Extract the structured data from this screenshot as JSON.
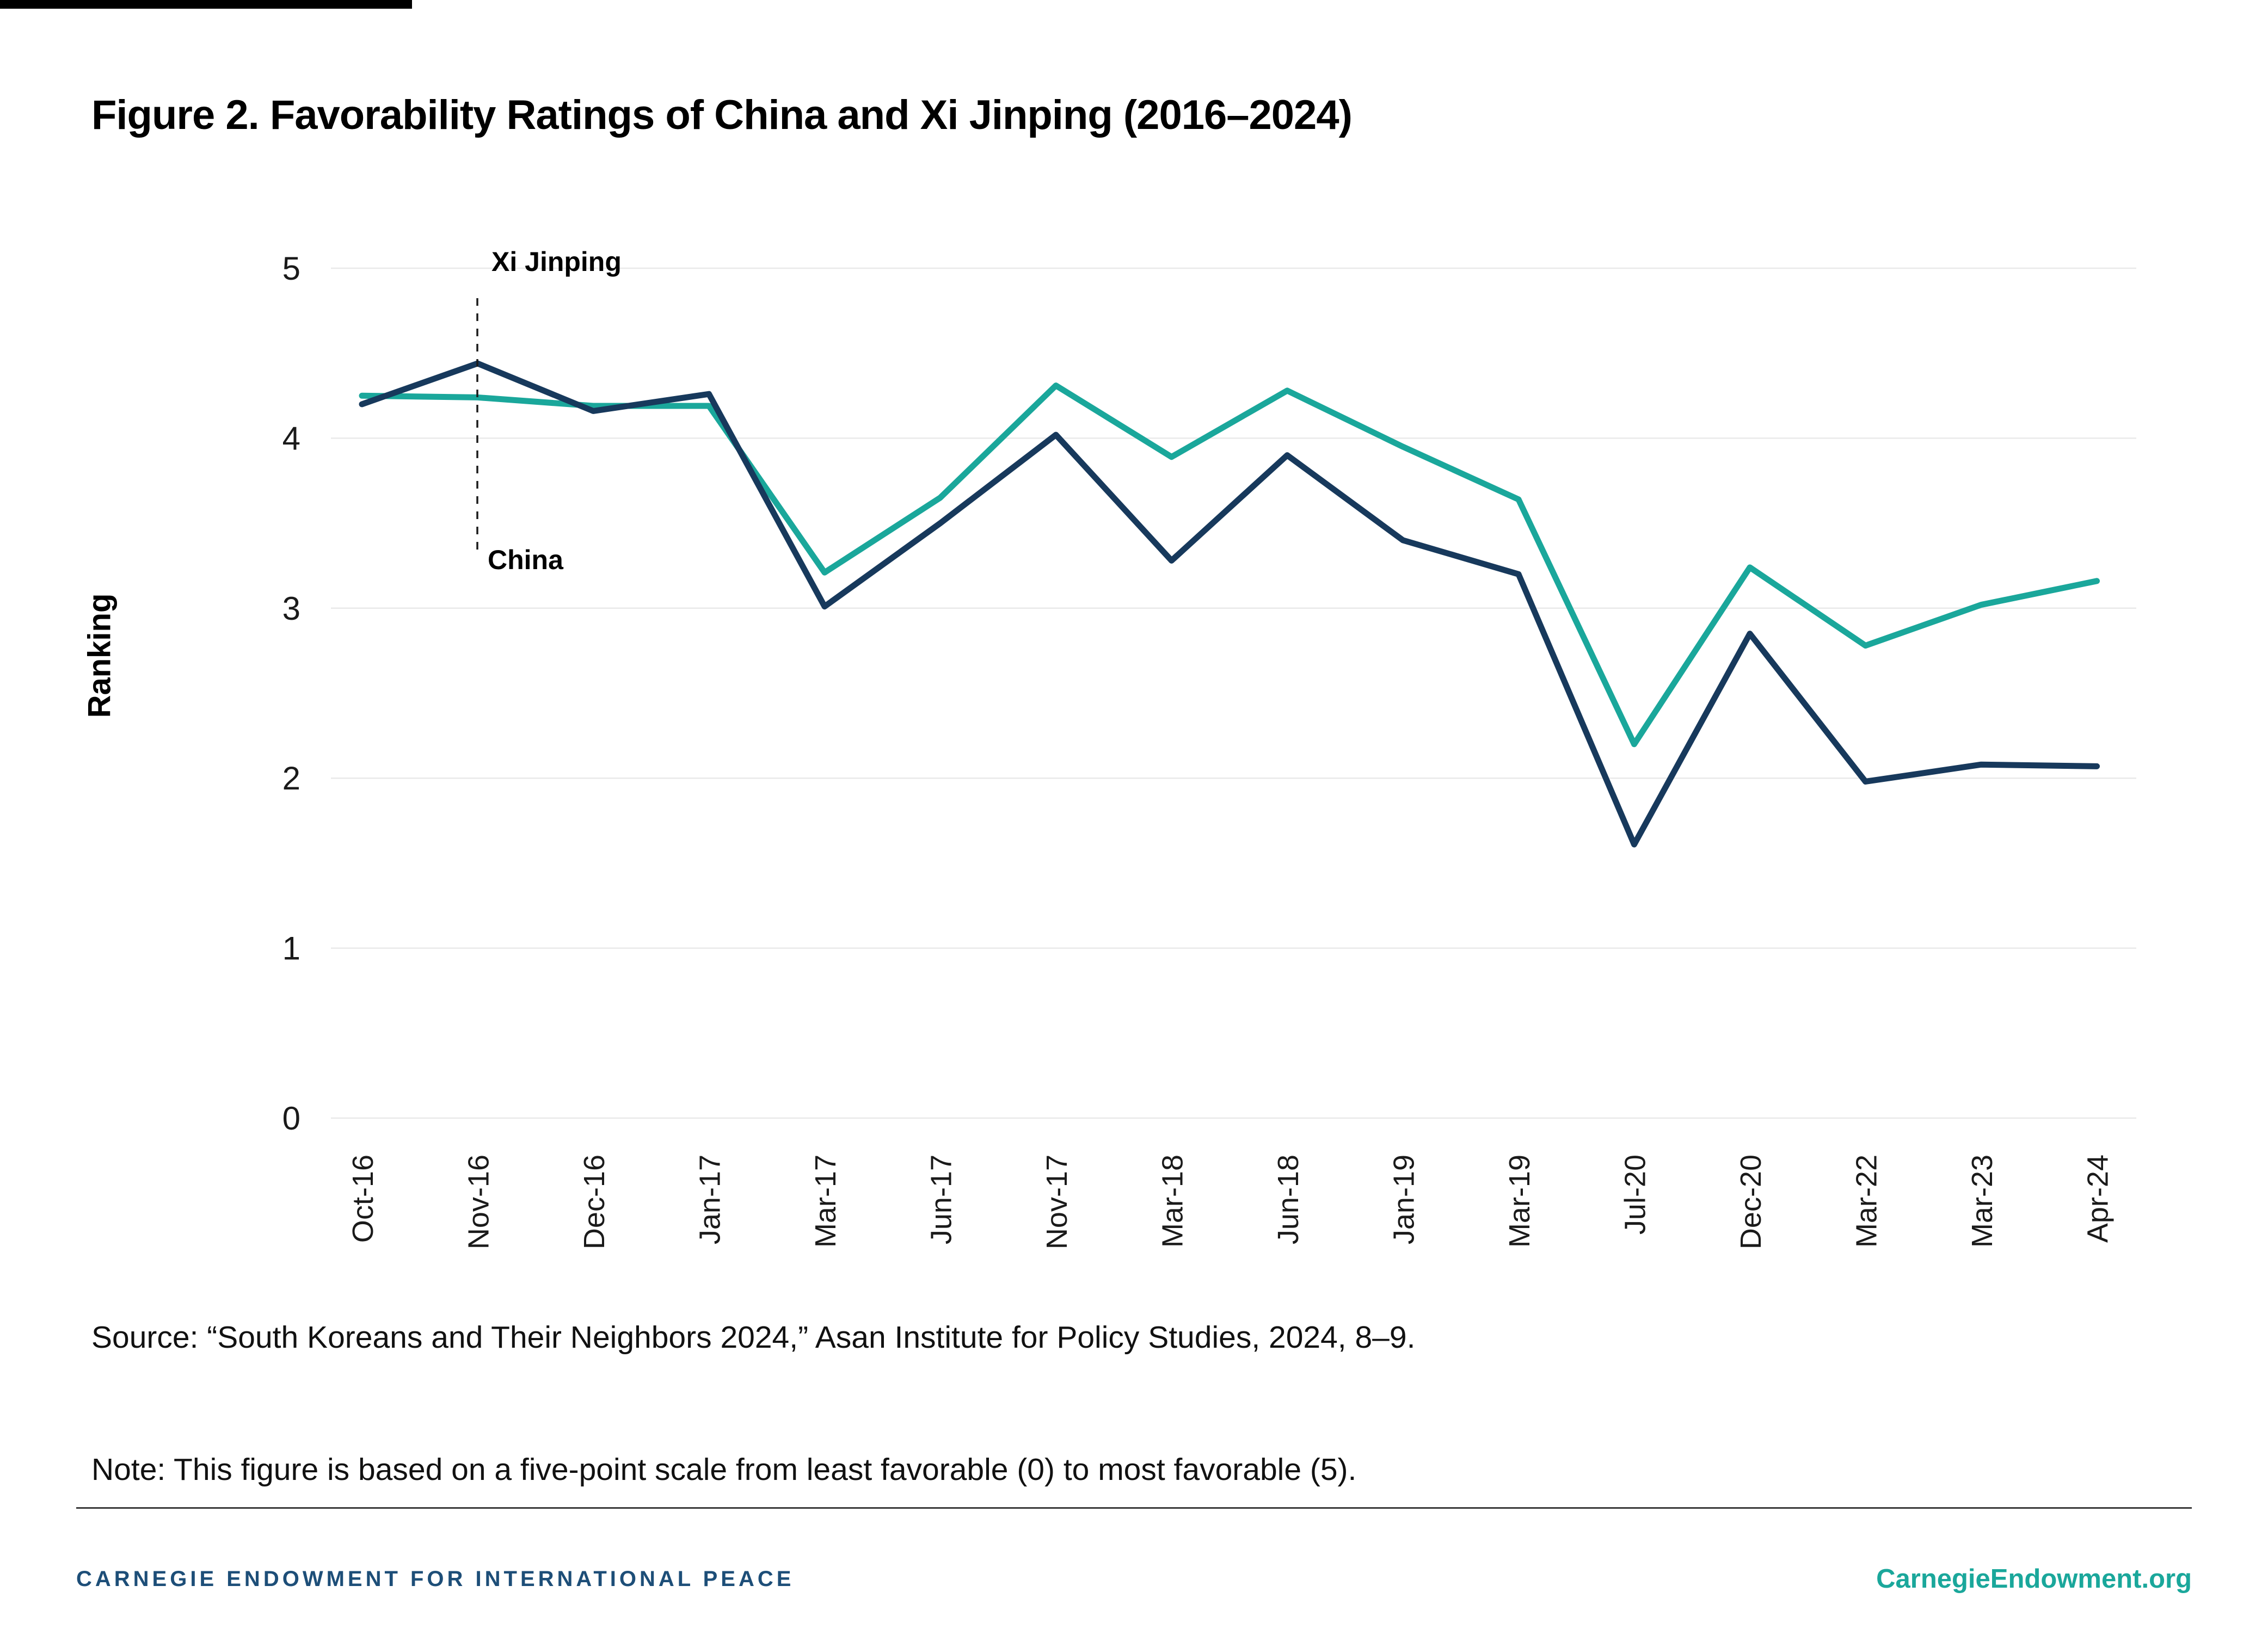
{
  "page": {
    "title": "Figure 2. Favorability Ratings of China and Xi Jinping (2016–2024)"
  },
  "chart_data": {
    "type": "line",
    "title": "Figure 2. Favorability Ratings of China and Xi Jinping (2016–2024)",
    "ylabel": "Ranking",
    "xlabel": "",
    "ylim": [
      0,
      5
    ],
    "yticks": [
      0,
      1,
      2,
      3,
      4,
      5
    ],
    "grid": "horizontal",
    "legend_position": "inline-annotations",
    "categories": [
      "Oct-16",
      "Nov-16",
      "Dec-16",
      "Jan-17",
      "Mar-17",
      "Jun-17",
      "Nov-17",
      "Mar-18",
      "Jun-18",
      "Jan-19",
      "Mar-19",
      "Jul-20",
      "Dec-20",
      "Mar-22",
      "Mar-23",
      "Apr-24"
    ],
    "series": [
      {
        "name": "China",
        "color": "#1AA79B",
        "values": [
          4.25,
          4.24,
          4.19,
          4.19,
          3.21,
          3.65,
          4.31,
          3.89,
          4.28,
          3.95,
          3.64,
          2.2,
          3.24,
          2.78,
          3.02,
          3.16
        ]
      },
      {
        "name": "Xi Jinping",
        "color": "#17395C",
        "values": [
          4.2,
          4.44,
          4.16,
          4.26,
          3.01,
          3.5,
          4.02,
          3.28,
          3.9,
          3.4,
          3.2,
          1.61,
          2.85,
          1.98,
          2.08,
          2.07
        ]
      }
    ],
    "annotations": {
      "xi_label": "Xi Jinping",
      "china_label": "China",
      "dashed_line_at_category": "Nov-16"
    },
    "colors": {
      "china_line": "#1AA79B",
      "xi_line": "#17395C",
      "gridline": "#e9e9e9",
      "annotation_dash": "#1a1a1a"
    }
  },
  "notes": {
    "source": "Source: “South Koreans and Their Neighbors 2024,” Asan Institute for Policy Studies, 2024, 8–9.",
    "note": "Note: This figure is based on a five-point scale from least favorable (0) to most favorable (5)."
  },
  "footer": {
    "org": "CARNEGIE ENDOWMENT FOR INTERNATIONAL PEACE",
    "org_color": "#1D4E78",
    "website": "CarnegieEndowment.org",
    "website_color": "#1AA79B"
  }
}
